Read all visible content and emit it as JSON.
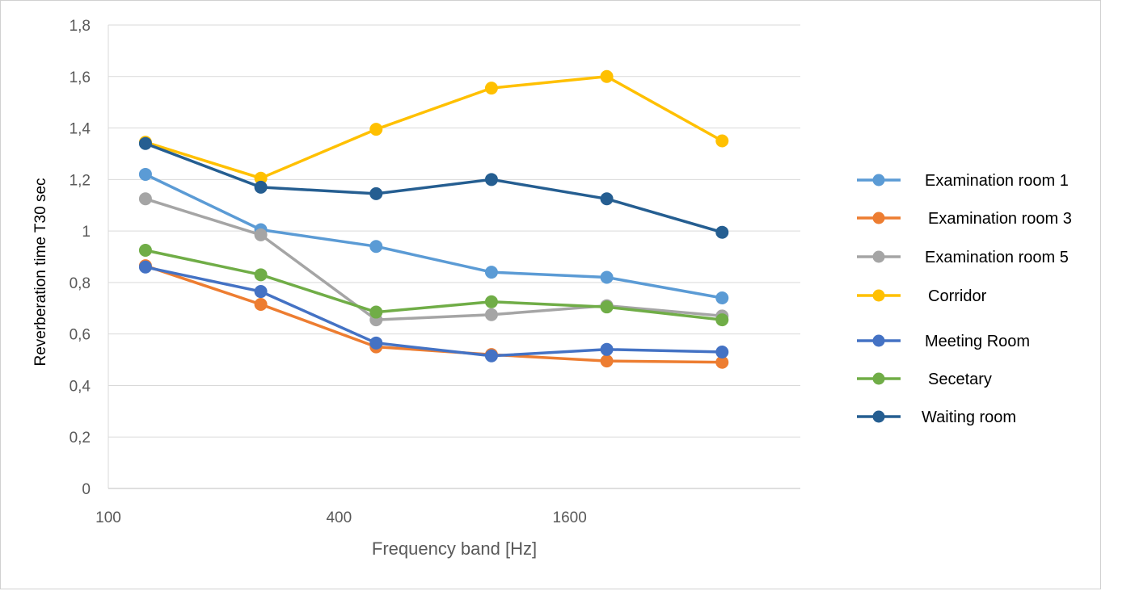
{
  "chart_data": {
    "type": "line",
    "title": "",
    "xlabel": "Frequency band [Hz]",
    "ylabel": "Reverberation time T30 sec",
    "x_scale": "log2",
    "x_ticks": [
      100,
      400,
      1600
    ],
    "x_tick_labels": [
      "100",
      "400",
      "1600"
    ],
    "xlim": [
      100,
      6400
    ],
    "y_ticks": [
      0,
      0.2,
      0.4,
      0.6,
      0.8,
      1,
      1.2,
      1.4,
      1.6,
      1.8
    ],
    "y_tick_labels": [
      "0",
      "0,2",
      "0,4",
      "0,6",
      "0,8",
      "1",
      "1,2",
      "1,4",
      "1,6",
      "1,8"
    ],
    "ylim": [
      0,
      1.8
    ],
    "grid": "horizontal",
    "legend_position": "right",
    "x": [
      125,
      250,
      500,
      1000,
      2000,
      4000
    ],
    "series": [
      {
        "name": "Examination room 1",
        "color": "#5b9bd5",
        "values": [
          1.22,
          1.005,
          0.94,
          0.84,
          0.82,
          0.74
        ]
      },
      {
        "name": "Examination room 3",
        "color": "#ed7d31",
        "values": [
          0.865,
          0.715,
          0.55,
          0.52,
          0.495,
          0.49
        ]
      },
      {
        "name": "Examination room 5",
        "color": "#a5a5a5",
        "values": [
          1.125,
          0.985,
          0.655,
          0.675,
          0.71,
          0.67
        ]
      },
      {
        "name": "Corridor",
        "color": "#ffc000",
        "values": [
          1.345,
          1.205,
          1.395,
          1.555,
          1.6,
          1.35
        ]
      },
      {
        "name": "Meeting Room",
        "color": "#4472c4",
        "values": [
          0.86,
          0.765,
          0.565,
          0.515,
          0.54,
          0.53
        ]
      },
      {
        "name": "Secetary",
        "color": "#70ad47",
        "values": [
          0.925,
          0.83,
          0.685,
          0.725,
          0.705,
          0.655
        ]
      },
      {
        "name": "Waiting room",
        "color": "#255e91",
        "values": [
          1.34,
          1.17,
          1.145,
          1.2,
          1.125,
          0.995
        ]
      }
    ]
  }
}
